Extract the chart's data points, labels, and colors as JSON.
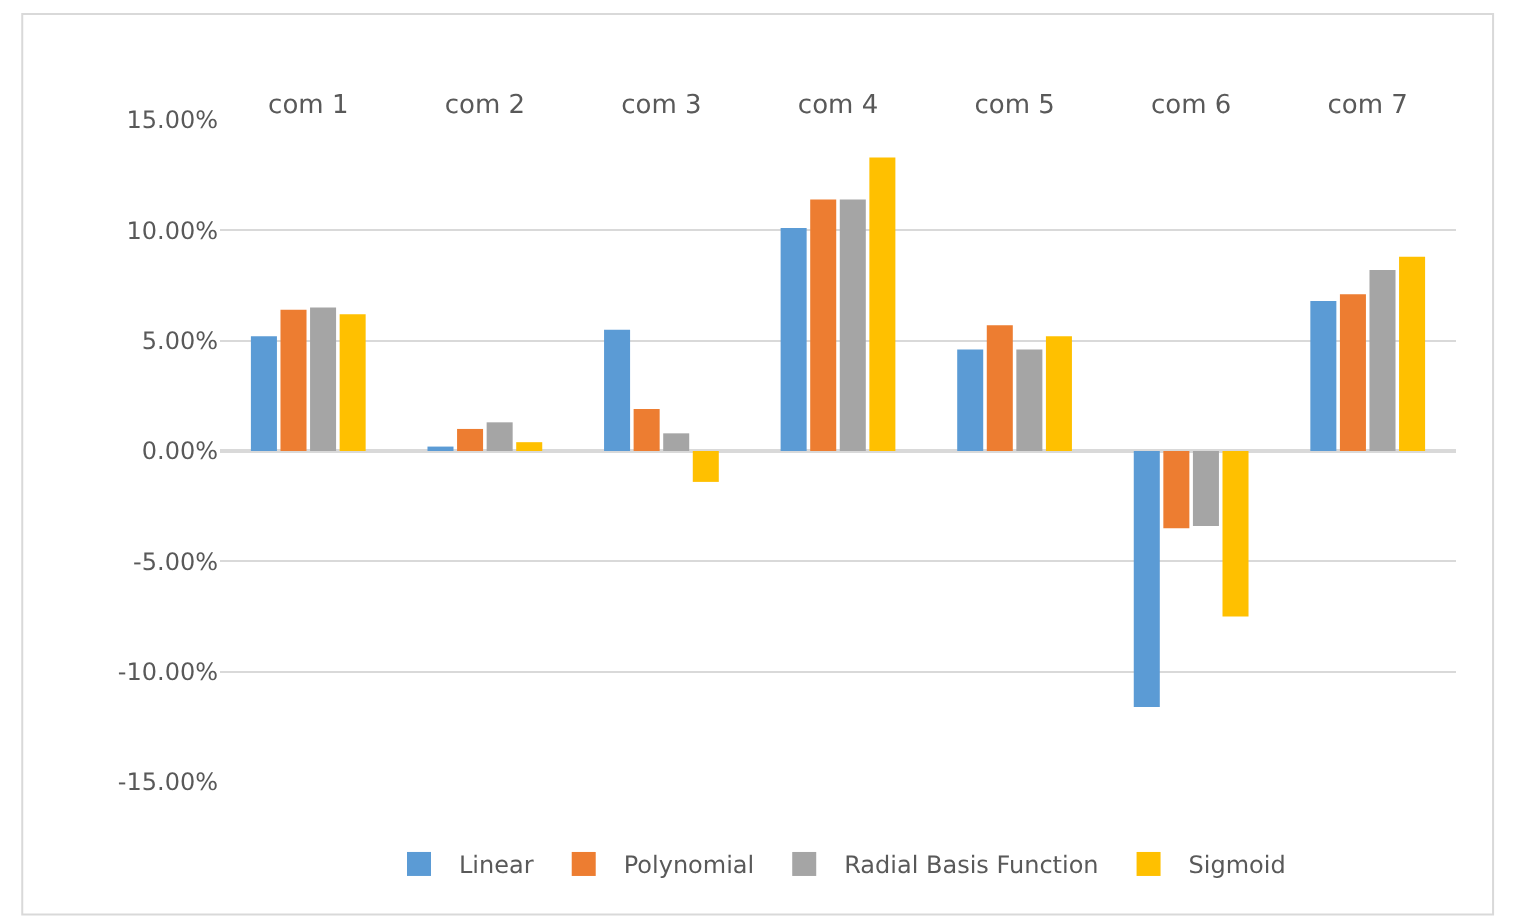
{
  "chart_data": {
    "type": "bar",
    "categories": [
      "com 1",
      "com 2",
      "com 3",
      "com 4",
      "com 5",
      "com 6",
      "com 7"
    ],
    "series": [
      {
        "name": "Linear",
        "color": "#5b9bd5",
        "values": [
          5.2,
          0.2,
          5.5,
          10.1,
          4.6,
          -11.6,
          6.8
        ]
      },
      {
        "name": "Polynomial",
        "color": "#ed7d31",
        "values": [
          6.4,
          1.0,
          1.9,
          11.4,
          5.7,
          -3.5,
          7.1
        ]
      },
      {
        "name": "Radial Basis Function",
        "color": "#a5a5a5",
        "values": [
          6.5,
          1.3,
          0.8,
          11.4,
          4.6,
          -3.4,
          8.2
        ]
      },
      {
        "name": "Sigmoid",
        "color": "#ffc000",
        "values": [
          6.2,
          0.4,
          -1.4,
          13.3,
          5.2,
          -7.5,
          8.8
        ]
      }
    ],
    "ylim": [
      -15,
      15
    ],
    "yticks": [
      {
        "value": -15,
        "label": "-15.00%"
      },
      {
        "value": -10,
        "label": "-10.00%"
      },
      {
        "value": -5,
        "label": "-5.00%"
      },
      {
        "value": 0,
        "label": "0.00%"
      },
      {
        "value": 5,
        "label": "5.00%"
      },
      {
        "value": 10,
        "label": "10.00%"
      },
      {
        "value": 15,
        "label": "15.00%"
      }
    ],
    "grid": "y",
    "legend": "bottom"
  }
}
